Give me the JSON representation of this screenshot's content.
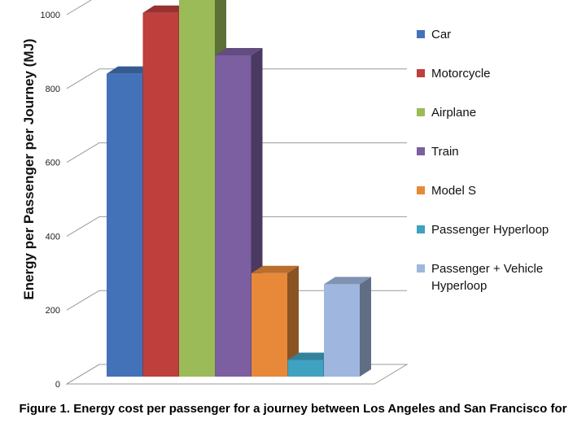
{
  "chart_data": {
    "type": "bar",
    "ylabel": "Energy per Passenger per Journey (MJ)",
    "ylim": [
      0,
      1000
    ],
    "yticks": [
      "0",
      "200",
      "400",
      "600",
      "800",
      "1000"
    ],
    "grid": true,
    "legend_position": "right",
    "categories": [
      "Car",
      "Motorcycle",
      "Airplane",
      "Train",
      "Model S",
      "Passenger Hyperloop",
      "Passenger + Vehicle Hyperloop"
    ],
    "values": [
      840,
      1005,
      1100,
      890,
      300,
      65,
      270
    ],
    "colors": [
      "#4472b8",
      "#be3f3c",
      "#9bbb59",
      "#7b5fa0",
      "#e8893a",
      "#3fa2c0",
      "#9fb7de"
    ]
  },
  "caption": "Figure 1. Energy cost per passenger for a journey between Los Angeles and San Francisco for"
}
